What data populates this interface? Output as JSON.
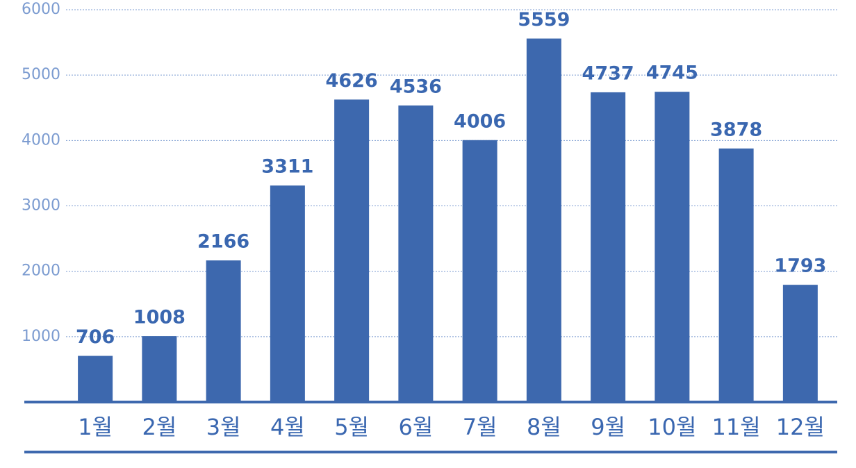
{
  "chart_data": {
    "type": "bar",
    "categories": [
      "1월",
      "2월",
      "3월",
      "4월",
      "5월",
      "6월",
      "7월",
      "8월",
      "9월",
      "10월",
      "11월",
      "12월"
    ],
    "values": [
      706,
      1008,
      2166,
      3311,
      4626,
      4536,
      4006,
      5559,
      4737,
      4745,
      3878,
      1793
    ],
    "color": "#3d68ae",
    "ylim": [
      0,
      6000
    ],
    "yticks": [
      1000,
      2000,
      3000,
      4000,
      5000,
      6000
    ],
    "grid": true
  }
}
